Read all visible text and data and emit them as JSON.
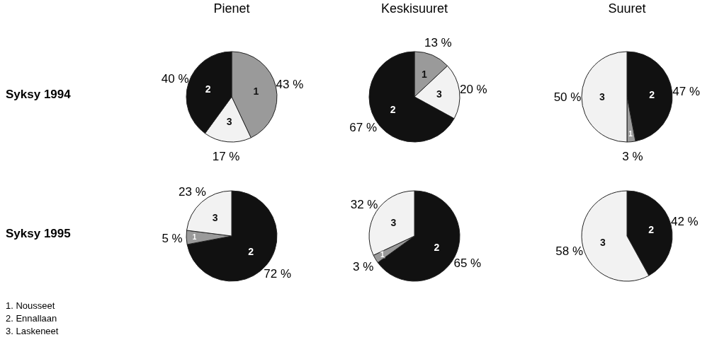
{
  "chart_data": [
    {
      "type": "pie",
      "title": "Pienet",
      "ylabel": "Syksy 1994",
      "categories": [
        "1",
        "3",
        "2"
      ],
      "values": [
        43,
        17,
        40
      ],
      "colors": [
        "#9a9a9a",
        "#f2f2f2",
        "#111111"
      ],
      "value_labels": [
        "43 %",
        "17 %",
        "40 %"
      ]
    },
    {
      "type": "pie",
      "title": "Keskisuuret",
      "categories": [
        "1",
        "3",
        "2"
      ],
      "values": [
        13,
        20,
        67
      ],
      "colors": [
        "#9a9a9a",
        "#f2f2f2",
        "#111111"
      ],
      "value_labels": [
        "13 %",
        "20 %",
        "67 %"
      ]
    },
    {
      "type": "pie",
      "title": "Suuret",
      "categories": [
        "2",
        "1",
        "3"
      ],
      "values": [
        47,
        3,
        50
      ],
      "colors": [
        "#111111",
        "#9a9a9a",
        "#f2f2f2"
      ],
      "value_labels": [
        "47 %",
        "3 %",
        "50 %"
      ]
    },
    {
      "type": "pie",
      "ylabel": "Syksy 1995",
      "categories": [
        "2",
        "1",
        "3"
      ],
      "values": [
        72,
        5,
        23
      ],
      "colors": [
        "#111111",
        "#9a9a9a",
        "#f2f2f2"
      ],
      "value_labels": [
        "72 %",
        "5 %",
        "23 %"
      ]
    },
    {
      "type": "pie",
      "categories": [
        "2",
        "1",
        "3"
      ],
      "values": [
        65,
        3,
        32
      ],
      "colors": [
        "#111111",
        "#9a9a9a",
        "#f2f2f2"
      ],
      "value_labels": [
        "65 %",
        "3 %",
        "32 %"
      ]
    },
    {
      "type": "pie",
      "categories": [
        "2",
        "3"
      ],
      "values": [
        42,
        58
      ],
      "colors": [
        "#111111",
        "#f2f2f2"
      ],
      "value_labels": [
        "42 %",
        "58 %"
      ]
    },
    {
      "type": "other",
      "annotations": [
        "1. Nousseet",
        "2. Ennallaan",
        "3. Laskeneet"
      ]
    }
  ]
}
